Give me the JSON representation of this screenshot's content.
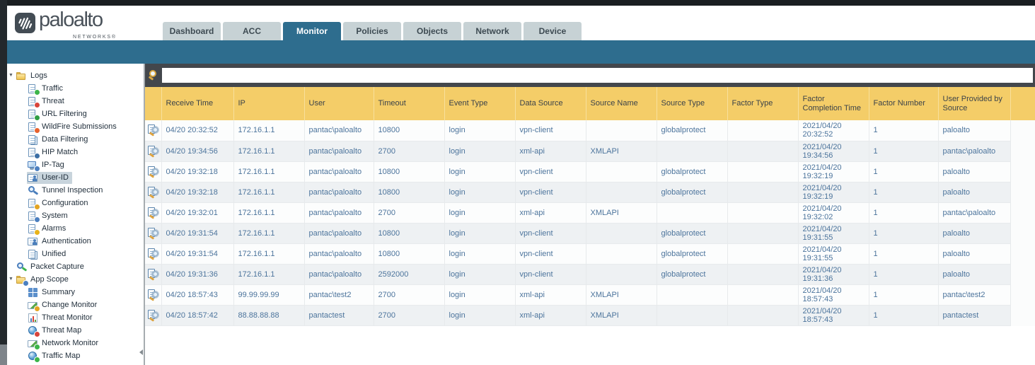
{
  "brand": {
    "name": "paloalto",
    "sub": "NETWORKS®"
  },
  "nav_tabs": {
    "items": [
      "Dashboard",
      "ACC",
      "Monitor",
      "Policies",
      "Objects",
      "Network",
      "Device"
    ],
    "active": "Monitor"
  },
  "search": {
    "value": ""
  },
  "sidebar": {
    "items": [
      {
        "label": "Logs",
        "level": 0,
        "expanded": true,
        "icon": {
          "name": "logs-folder-icon",
          "type": "folder",
          "badge": ""
        }
      },
      {
        "label": "Traffic",
        "level": 1,
        "icon": {
          "name": "traffic-log-icon",
          "type": "doc",
          "badge": "#3cb54a"
        }
      },
      {
        "label": "Threat",
        "level": 1,
        "icon": {
          "name": "threat-log-icon",
          "type": "doc",
          "badge": "#d8443a"
        }
      },
      {
        "label": "URL Filtering",
        "level": 1,
        "icon": {
          "name": "url-filtering-icon",
          "type": "doc",
          "badge": "#2f9e44"
        }
      },
      {
        "label": "WildFire Submissions",
        "level": 1,
        "icon": {
          "name": "wildfire-submissions-icon",
          "type": "doc",
          "badge": "#e8622d"
        }
      },
      {
        "label": "Data Filtering",
        "level": 1,
        "icon": {
          "name": "data-filtering-icon",
          "type": "doc2",
          "badge": ""
        }
      },
      {
        "label": "HIP Match",
        "level": 1,
        "icon": {
          "name": "hip-match-icon",
          "type": "doc",
          "badge": "#3a6ea5"
        }
      },
      {
        "label": "IP-Tag",
        "level": 1,
        "icon": {
          "name": "ip-tag-icon",
          "type": "monitor",
          "badge": "#4b7fc0"
        }
      },
      {
        "label": "User-ID",
        "level": 1,
        "selected": true,
        "icon": {
          "name": "user-id-icon",
          "type": "card",
          "badge": ""
        }
      },
      {
        "label": "Tunnel Inspection",
        "level": 1,
        "icon": {
          "name": "tunnel-inspection-icon",
          "type": "magnifier",
          "badge": ""
        }
      },
      {
        "label": "Configuration",
        "level": 1,
        "icon": {
          "name": "configuration-icon",
          "type": "doc",
          "badge": "#e3a422"
        }
      },
      {
        "label": "System",
        "level": 1,
        "icon": {
          "name": "system-log-icon",
          "type": "doc",
          "badge": "#4b7fc0"
        }
      },
      {
        "label": "Alarms",
        "level": 1,
        "icon": {
          "name": "alarms-icon",
          "type": "doc",
          "badge": "#e8b31a"
        }
      },
      {
        "label": "Authentication",
        "level": 1,
        "icon": {
          "name": "authentication-icon",
          "type": "card",
          "badge": ""
        }
      },
      {
        "label": "Unified",
        "level": 1,
        "icon": {
          "name": "unified-log-icon",
          "type": "doc2",
          "badge": ""
        }
      },
      {
        "label": "Packet Capture",
        "level": 0,
        "icon": {
          "name": "packet-capture-icon",
          "type": "magnifier",
          "badge": "#3cb54a"
        }
      },
      {
        "label": "App Scope",
        "level": 0,
        "expanded": true,
        "icon": {
          "name": "app-scope-folder-icon",
          "type": "folder",
          "badge": "#4b7fc0"
        }
      },
      {
        "label": "Summary",
        "level": 1,
        "icon": {
          "name": "summary-icon",
          "type": "grid",
          "badge": ""
        }
      },
      {
        "label": "Change Monitor",
        "level": 1,
        "icon": {
          "name": "change-monitor-icon",
          "type": "picture",
          "badge": "#e3a422"
        }
      },
      {
        "label": "Threat Monitor",
        "level": 1,
        "icon": {
          "name": "threat-monitor-icon",
          "type": "chart",
          "badge": ""
        }
      },
      {
        "label": "Threat Map",
        "level": 1,
        "icon": {
          "name": "threat-map-icon",
          "type": "globe",
          "badge": "#d8443a"
        }
      },
      {
        "label": "Network Monitor",
        "level": 1,
        "icon": {
          "name": "network-monitor-icon",
          "type": "picture",
          "badge": "#3cb54a"
        }
      },
      {
        "label": "Traffic Map",
        "level": 1,
        "icon": {
          "name": "traffic-map-icon",
          "type": "globe",
          "badge": "#3cb54a"
        }
      }
    ]
  },
  "log_table": {
    "columns": [
      "Receive Time",
      "IP",
      "User",
      "Timeout",
      "Event Type",
      "Data Source",
      "Source Name",
      "Source Type",
      "Factor Type",
      "Factor Completion Time",
      "Factor Number",
      "User Provided by Source"
    ],
    "rows": [
      [
        "04/20 20:32:52",
        "172.16.1.1",
        "pantac\\paloalto",
        "10800",
        "login",
        "vpn-client",
        "",
        "globalprotect",
        "",
        "2021/04/20 20:32:52",
        "1",
        "paloalto"
      ],
      [
        "04/20 19:34:56",
        "172.16.1.1",
        "pantac\\paloalto",
        "2700",
        "login",
        "xml-api",
        "XMLAPI",
        "",
        "",
        "2021/04/20 19:34:56",
        "1",
        "pantac\\paloalto"
      ],
      [
        "04/20 19:32:18",
        "172.16.1.1",
        "pantac\\paloalto",
        "10800",
        "login",
        "vpn-client",
        "",
        "globalprotect",
        "",
        "2021/04/20 19:32:19",
        "1",
        "paloalto"
      ],
      [
        "04/20 19:32:18",
        "172.16.1.1",
        "pantac\\paloalto",
        "10800",
        "login",
        "vpn-client",
        "",
        "globalprotect",
        "",
        "2021/04/20 19:32:19",
        "1",
        "paloalto"
      ],
      [
        "04/20 19:32:01",
        "172.16.1.1",
        "pantac\\paloalto",
        "2700",
        "login",
        "xml-api",
        "XMLAPI",
        "",
        "",
        "2021/04/20 19:32:02",
        "1",
        "pantac\\paloalto"
      ],
      [
        "04/20 19:31:54",
        "172.16.1.1",
        "pantac\\paloalto",
        "10800",
        "login",
        "vpn-client",
        "",
        "globalprotect",
        "",
        "2021/04/20 19:31:55",
        "1",
        "paloalto"
      ],
      [
        "04/20 19:31:54",
        "172.16.1.1",
        "pantac\\paloalto",
        "10800",
        "login",
        "vpn-client",
        "",
        "globalprotect",
        "",
        "2021/04/20 19:31:55",
        "1",
        "paloalto"
      ],
      [
        "04/20 19:31:36",
        "172.16.1.1",
        "pantac\\paloalto",
        "2592000",
        "login",
        "vpn-client",
        "",
        "globalprotect",
        "",
        "2021/04/20 19:31:36",
        "1",
        "paloalto"
      ],
      [
        "04/20 18:57:43",
        "99.99.99.99",
        "pantac\\test2",
        "2700",
        "login",
        "xml-api",
        "XMLAPI",
        "",
        "",
        "2021/04/20 18:57:43",
        "1",
        "pantac\\test2"
      ],
      [
        "04/20 18:57:42",
        "88.88.88.88",
        "pantactest",
        "2700",
        "login",
        "xml-api",
        "XMLAPI",
        "",
        "",
        "2021/04/20 18:57:43",
        "1",
        "pantactest"
      ]
    ]
  },
  "colors": {
    "top_bar_teal": "#2e6d8e",
    "table_header_yellow": "#f4cd68",
    "cell_text_blue": "#4c749c",
    "search_band_dark": "#43474c",
    "selected_tree_item_bg": "#c8d4dc"
  }
}
